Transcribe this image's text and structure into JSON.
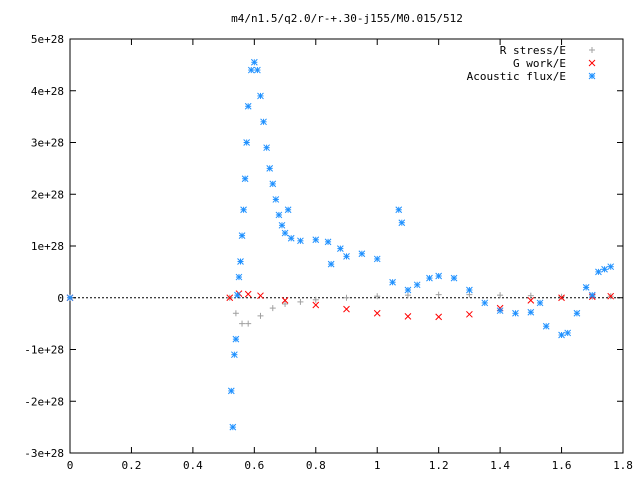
{
  "chart_data": {
    "type": "scatter",
    "title": "m4/n1.5/q2.0/r-+.30-j155/M0.015/512",
    "xlim": [
      0,
      1.8
    ],
    "ylim": [
      -3e+28,
      5e+28
    ],
    "x_ticks": [
      {
        "value": 0,
        "label": "0"
      },
      {
        "value": 0.2,
        "label": "0.2"
      },
      {
        "value": 0.4,
        "label": "0.4"
      },
      {
        "value": 0.6,
        "label": "0.6"
      },
      {
        "value": 0.8,
        "label": "0.8"
      },
      {
        "value": 1.0,
        "label": "1"
      },
      {
        "value": 1.2,
        "label": "1.2"
      },
      {
        "value": 1.4,
        "label": "1.4"
      },
      {
        "value": 1.6,
        "label": "1.6"
      },
      {
        "value": 1.8,
        "label": "1.8"
      }
    ],
    "y_ticks": [
      {
        "value": 5e+28,
        "label": "5e+28"
      },
      {
        "value": 4e+28,
        "label": "4e+28"
      },
      {
        "value": 3e+28,
        "label": "3e+28"
      },
      {
        "value": 2e+28,
        "label": "2e+28"
      },
      {
        "value": 1e+28,
        "label": "1e+28"
      },
      {
        "value": 0,
        "label": "0"
      },
      {
        "value": -1e+28,
        "label": "-1e+28"
      },
      {
        "value": -2e+28,
        "label": "-2e+28"
      },
      {
        "value": -3e+28,
        "label": "-3e+28"
      }
    ],
    "grid": false,
    "legend_position": "top-right",
    "series": [
      {
        "name": "R stress/E",
        "marker": "plus",
        "color": "#a0a0a0",
        "x": [
          0.0,
          0.52,
          0.54,
          0.56,
          0.58,
          0.62,
          0.66,
          0.7,
          0.75,
          0.8,
          0.9,
          1.0,
          1.1,
          1.2,
          1.3,
          1.4,
          1.5,
          1.6,
          1.7,
          1.76
        ],
        "y": [
          0,
          0,
          -3e+27,
          -5e+27,
          -5e+27,
          -3.5e+27,
          -2e+27,
          -1.2e+27,
          -8e+26,
          -4e+26,
          0,
          3e+26,
          5e+26,
          6e+26,
          6e+26,
          5e+26,
          4e+26,
          2e+26,
          2e+26,
          3e+26
        ]
      },
      {
        "name": "G work/E",
        "marker": "cross",
        "color": "#ff0000",
        "x": [
          0.0,
          0.52,
          0.55,
          0.58,
          0.62,
          0.7,
          0.8,
          0.9,
          1.0,
          1.1,
          1.2,
          1.3,
          1.4,
          1.5,
          1.6,
          1.7,
          1.76
        ],
        "y": [
          0,
          0,
          8e+26,
          7e+26,
          4e+26,
          -5e+26,
          -1.4e+27,
          -2.2e+27,
          -3e+27,
          -3.6e+27,
          -3.7e+27,
          -3.2e+27,
          -2e+27,
          -5e+26,
          0,
          2e+26,
          3e+26
        ]
      },
      {
        "name": "Acoustic flux/E",
        "marker": "star",
        "color": "#1e90ff",
        "x": [
          0.0,
          0.525,
          0.53,
          0.535,
          0.54,
          0.545,
          0.55,
          0.555,
          0.56,
          0.565,
          0.57,
          0.575,
          0.58,
          0.59,
          0.6,
          0.61,
          0.62,
          0.63,
          0.64,
          0.65,
          0.66,
          0.67,
          0.68,
          0.69,
          0.7,
          0.71,
          0.72,
          0.75,
          0.8,
          0.84,
          0.85,
          0.88,
          0.9,
          0.95,
          1.0,
          1.05,
          1.07,
          1.08,
          1.1,
          1.13,
          1.17,
          1.2,
          1.25,
          1.3,
          1.35,
          1.4,
          1.45,
          1.5,
          1.53,
          1.55,
          1.6,
          1.62,
          1.65,
          1.68,
          1.7,
          1.72,
          1.74,
          1.76
        ],
        "y": [
          0,
          -1.8e+28,
          -2.5e+28,
          -1.1e+28,
          -8e+27,
          5e+26,
          4e+27,
          7e+27,
          1.2e+28,
          1.7e+28,
          2.3e+28,
          3e+28,
          3.7e+28,
          4.4e+28,
          4.55e+28,
          4.4e+28,
          3.9e+28,
          3.4e+28,
          2.9e+28,
          2.5e+28,
          2.2e+28,
          1.9e+28,
          1.6e+28,
          1.4e+28,
          1.25e+28,
          1.7e+28,
          1.15e+28,
          1.1e+28,
          1.12e+28,
          1.08e+28,
          6.5e+27,
          9.5e+27,
          8e+27,
          8.5e+27,
          7.5e+27,
          3e+27,
          1.7e+28,
          1.45e+28,
          1.5e+27,
          2.5e+27,
          3.8e+27,
          4.2e+27,
          3.8e+27,
          1.5e+27,
          -1e+27,
          -2.5e+27,
          -3e+27,
          -2.8e+27,
          -1e+27,
          -5.5e+27,
          -7.2e+27,
          -6.8e+27,
          -3e+27,
          2e+27,
          5e+26,
          5e+27,
          5.5e+27,
          6e+27
        ]
      }
    ]
  }
}
